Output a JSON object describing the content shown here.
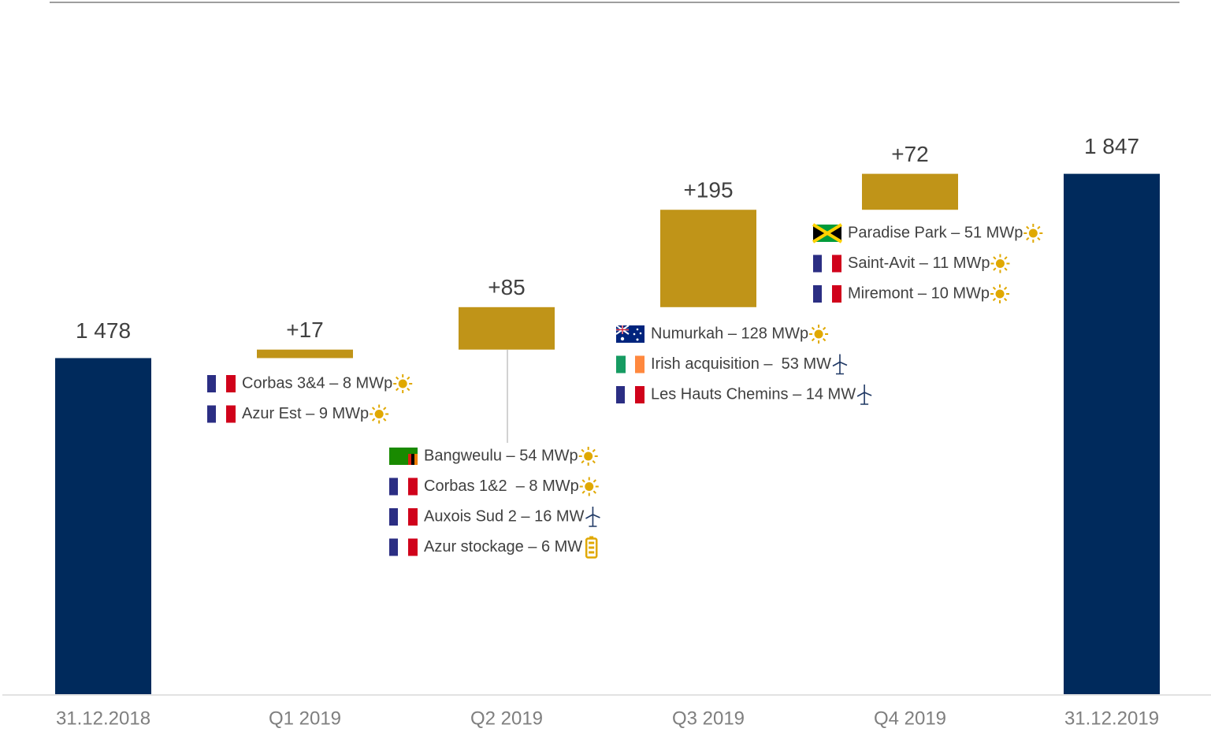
{
  "chart_data": {
    "type": "waterfall",
    "categories": [
      "31.12.2018",
      "Q1 2019",
      "Q2 2019",
      "Q3 2019",
      "Q4 2019",
      "31.12.2019"
    ],
    "values": [
      1478,
      17,
      85,
      195,
      72,
      1847
    ],
    "value_labels": [
      "1 478",
      "+17",
      "+85",
      "+195",
      "+72",
      "1 847"
    ],
    "kinds": [
      "total",
      "delta",
      "delta",
      "delta",
      "delta",
      "total"
    ],
    "total_color": "#002a5c",
    "delta_color": "#c09418",
    "ylim": [
      805,
      1900
    ],
    "projects": [
      null,
      [
        {
          "text": "Corbas 3&4 – 8 MWp",
          "flag": "fr",
          "icon": "sun"
        },
        {
          "text": "Azur Est – 9 MWp",
          "flag": "fr",
          "icon": "sun"
        }
      ],
      [
        {
          "text": "Bangweulu – 54 MWp",
          "flag": "zm",
          "icon": "sun"
        },
        {
          "text": "Corbas 1&2  – 8 MWp",
          "flag": "fr",
          "icon": "sun"
        },
        {
          "text": "Auxois Sud 2 – 16 MW",
          "flag": "fr",
          "icon": "wind"
        },
        {
          "text": "Azur stockage – 6 MW",
          "flag": "fr",
          "icon": "battery"
        }
      ],
      [
        {
          "text": "Numurkah – 128 MWp",
          "flag": "au",
          "icon": "sun"
        },
        {
          "text": "Irish acquisition –  53 MW",
          "flag": "ie",
          "icon": "wind"
        },
        {
          "text": "Les Hauts Chemins – 14 MW",
          "flag": "fr",
          "icon": "wind"
        }
      ],
      [
        {
          "text": "Paradise Park – 51 MWp",
          "flag": "jm",
          "icon": "sun"
        },
        {
          "text": "Saint-Avit – 11 MWp",
          "flag": "fr",
          "icon": "sun"
        },
        {
          "text": "Miremont – 10 MWp",
          "flag": "fr",
          "icon": "sun"
        }
      ],
      null
    ]
  }
}
